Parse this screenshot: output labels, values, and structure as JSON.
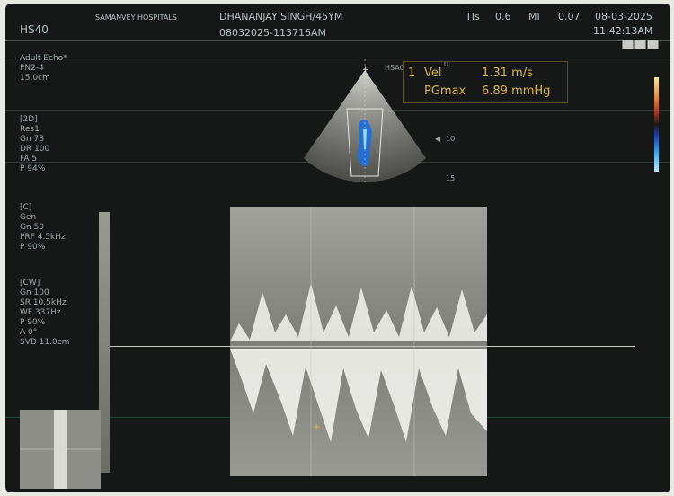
{
  "header": {
    "device": "HS40",
    "hospital": "SAMANVEY HOSPITALS",
    "patient": "DHANANJAY SINGH/45YM",
    "exam_id": "08032025-113716AM",
    "tis_label": "TIs",
    "tis_value": "0.6",
    "mi_label": "MI",
    "mi_value": "0.07",
    "date": "08-03-2025",
    "time": "11:42:13AM"
  },
  "left_panel": {
    "preset": [
      "Adult Echo*",
      "PN2-4",
      "15.0cm"
    ],
    "mode_2d": {
      "title": "[2D]",
      "lines": [
        "Res1",
        "Gn    78",
        "DR    100",
        "FA    5",
        "P     94%"
      ]
    },
    "mode_c": {
      "title": "[C]",
      "lines": [
        "Gen",
        "Gn    50",
        "PRF   4.5kHz",
        "P     90%"
      ]
    },
    "mode_cw": {
      "title": "[CW]",
      "lines": [
        "Gn    100",
        "SR    10.5kHz",
        "WF    337Hz",
        "P     90%",
        "A     0°",
        "SVD  11.0cm"
      ]
    }
  },
  "measurement": {
    "index": "1",
    "row1_label": "Vel",
    "row1_value": "1.31 m/s",
    "row2_label": "PGmax",
    "row2_value": "6.89 mmHg"
  },
  "sector": {
    "depth_marks": [
      "0",
      "10",
      "15"
    ],
    "label": "HSAC"
  },
  "colors": {
    "screen_bg": "#151817",
    "text": "#b9c2c7",
    "measurement": "#d8b84a",
    "doppler_bg": "#8c8c87"
  },
  "icons": [
    "freeze-icon",
    "layout-icon",
    "cine-icon"
  ]
}
